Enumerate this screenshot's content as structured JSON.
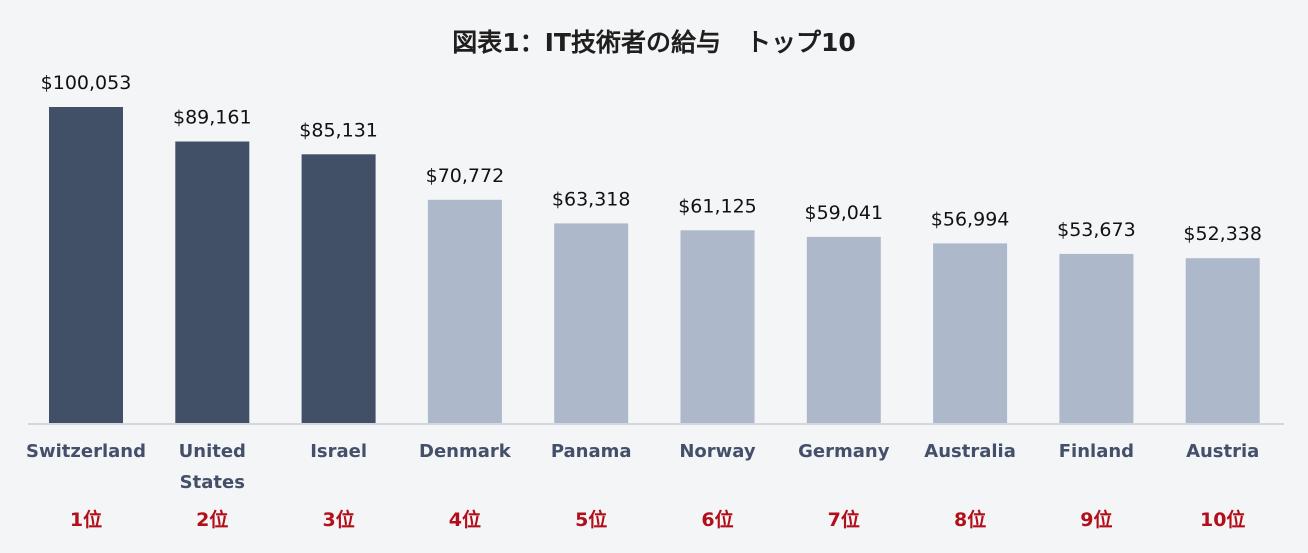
{
  "chart_data": {
    "type": "bar",
    "title": "図表1：IT技術者の給与　トップ10",
    "xlabel": "",
    "ylabel": "",
    "ylim": [
      0,
      100053
    ],
    "grid": false,
    "legend": "none",
    "categories": [
      [
        "Switzerland"
      ],
      [
        "United",
        "States"
      ],
      [
        "Israel"
      ],
      [
        "Denmark"
      ],
      [
        "Panama"
      ],
      [
        "Norway"
      ],
      [
        "Germany"
      ],
      [
        "Australia"
      ],
      [
        "Finland"
      ],
      [
        "Austria"
      ]
    ],
    "values": [
      100053,
      89161,
      85131,
      70772,
      63318,
      61125,
      59041,
      56994,
      53673,
      52338
    ],
    "value_labels": [
      "$100,053",
      "$89,161",
      "$85,131",
      "$70,772",
      "$63,318",
      "$61,125",
      "$59,041",
      "$56,994",
      "$53,673",
      "$52,338"
    ],
    "ranks": [
      "1位",
      "2位",
      "3位",
      "4位",
      "5位",
      "6位",
      "7位",
      "8位",
      "9位",
      "10位"
    ],
    "highlighted_count": 3,
    "colors": {
      "highlight": "#415066",
      "normal": "#adb8ca",
      "axis": "#d4d8de",
      "rank": "#b30f1a",
      "category": "#44506a",
      "background": "#f4f5f7"
    }
  }
}
